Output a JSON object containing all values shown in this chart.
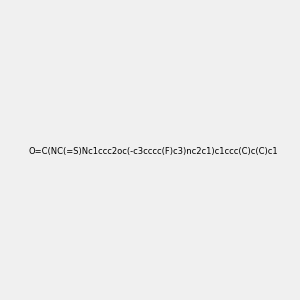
{
  "smiles": "O=C(NC(=S)Nc1ccc2oc(-c3cccc(F)c3)nc2c1)c1ccc(C)c(C)c1",
  "img_size": [
    300,
    300
  ],
  "background_color": "#f0f0f0",
  "title": "",
  "dpi": 100,
  "figsize": [
    3.0,
    3.0
  ]
}
